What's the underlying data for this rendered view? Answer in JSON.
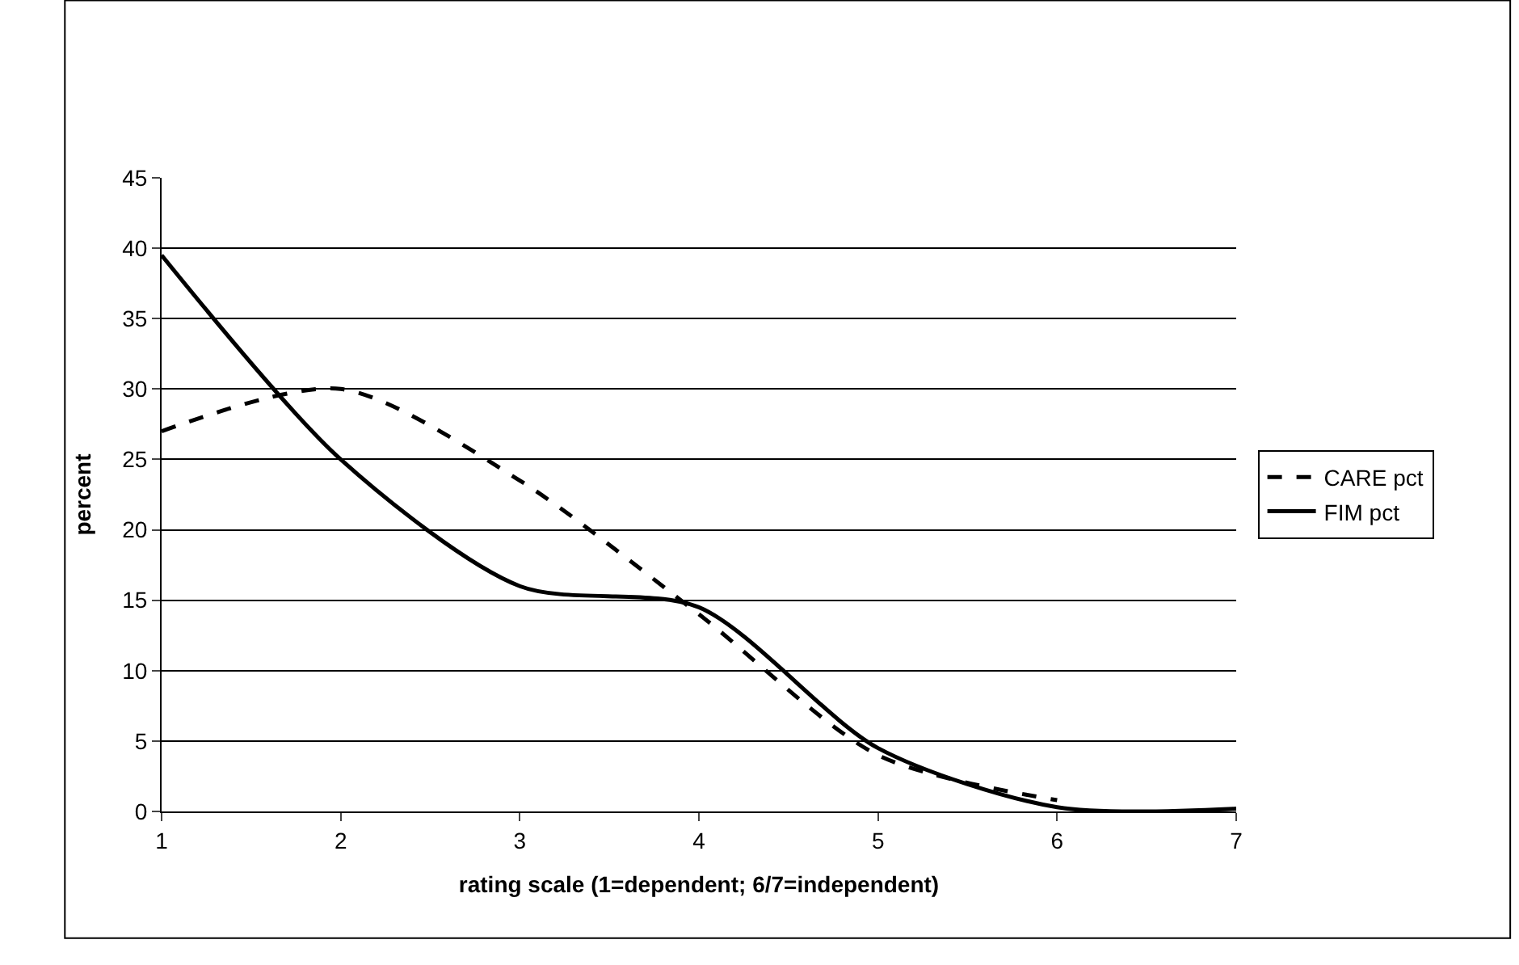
{
  "chart_data": {
    "type": "line",
    "xlabel": "rating scale (1=dependent; 6/7=independent)",
    "ylabel": "percent",
    "x": [
      1,
      2,
      3,
      4,
      5,
      6,
      7
    ],
    "series": [
      {
        "name": "CARE pct",
        "color": "#000000",
        "line_style": "dashed",
        "values": [
          27,
          30,
          23.5,
          14,
          4,
          0.8,
          null
        ]
      },
      {
        "name": "FIM pct",
        "color": "#000000",
        "line_style": "solid",
        "values": [
          39.5,
          25,
          16,
          14.5,
          4.5,
          0.3,
          0.2
        ]
      }
    ],
    "xlim": [
      1,
      7
    ],
    "xticks": [
      1,
      2,
      3,
      4,
      5,
      6,
      7
    ],
    "ylim": [
      0,
      45
    ],
    "yticks": [
      0,
      5,
      10,
      15,
      20,
      25,
      30,
      35,
      40,
      45
    ],
    "grid": "y",
    "legend": "right",
    "marker": "none"
  }
}
